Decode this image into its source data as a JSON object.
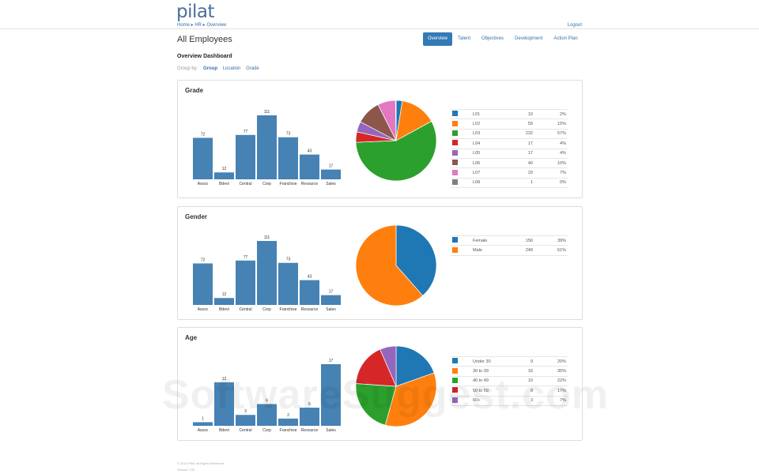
{
  "header": {
    "logo": "pilat",
    "breadcrumb": "Home  ▸  HR  ▸  Overview",
    "logout": "Logout"
  },
  "page": {
    "title": "All Employees",
    "subtitle": "Overview Dashboard",
    "tabs": [
      {
        "label": "Overview",
        "active": true
      },
      {
        "label": "Talent"
      },
      {
        "label": "Objectives"
      },
      {
        "label": "Development"
      },
      {
        "label": "Action Plan"
      }
    ],
    "group_by": {
      "label": "Group by:",
      "options": [
        {
          "label": "Group",
          "active": true
        },
        {
          "label": "Location"
        },
        {
          "label": "Grade"
        }
      ]
    }
  },
  "colors": [
    "#1f77b4",
    "#ff7f0e",
    "#2ca02c",
    "#d62728",
    "#9467bd",
    "#8c564b",
    "#e377c2",
    "#7f7f7f"
  ],
  "bar_color": "#4682b4",
  "chart_data": [
    {
      "title": "Grade",
      "type": "bar",
      "categories": [
        "Assoc",
        "Bdevt",
        "Central",
        "Corp",
        "Franchise",
        "Resource",
        "Sales"
      ],
      "values": [
        72,
        12,
        77,
        111,
        73,
        43,
        17
      ],
      "pie": {
        "type": "pie",
        "labels": [
          "L01",
          "L02",
          "L03",
          "L04",
          "L05",
          "L06",
          "L07",
          "L08"
        ],
        "values": [
          10,
          59,
          232,
          17,
          17,
          40,
          29,
          1
        ],
        "percents": [
          "2%",
          "15%",
          "57%",
          "4%",
          "4%",
          "10%",
          "7%",
          "0%"
        ]
      }
    },
    {
      "title": "Gender",
      "type": "bar",
      "categories": [
        "Assoc",
        "Bdevt",
        "Central",
        "Corp",
        "Franchise",
        "Resource",
        "Sales"
      ],
      "values": [
        72,
        12,
        77,
        111,
        73,
        43,
        17
      ],
      "pie": {
        "type": "pie",
        "labels": [
          "Female",
          "Male"
        ],
        "values": [
          156,
          249
        ],
        "percents": [
          "39%",
          "61%"
        ]
      }
    },
    {
      "title": "Age",
      "type": "bar",
      "categories": [
        "Assoc",
        "Bdevt",
        "Central",
        "Corp",
        "Franchise",
        "Resource",
        "Sales"
      ],
      "values": [
        1,
        12,
        3,
        6,
        2,
        5,
        17
      ],
      "pie": {
        "type": "pie",
        "labels": [
          "Under 30",
          "30 to 39",
          "40 to 49",
          "50 to 59",
          "60+"
        ],
        "values": [
          9,
          16,
          10,
          8,
          3
        ],
        "percents": [
          "20%",
          "35%",
          "22%",
          "17%",
          "7%"
        ]
      }
    }
  ],
  "footer": {
    "copyright": "© 2019 Pilat. All Rights Reserved.",
    "version": "Version 7.00"
  },
  "watermark": "SoftwareSuggest.com"
}
